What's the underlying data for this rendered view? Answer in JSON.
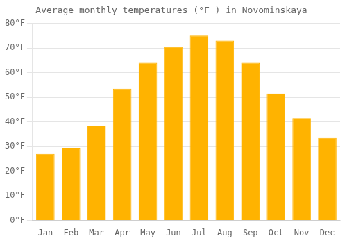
{
  "chart_data": {
    "type": "bar",
    "title": "Average monthly temperatures (°F ) in Novominskaya",
    "categories": [
      "Jan",
      "Feb",
      "Mar",
      "Apr",
      "May",
      "Jun",
      "Jul",
      "Aug",
      "Sep",
      "Oct",
      "Nov",
      "Dec"
    ],
    "values": [
      27,
      29.5,
      38.5,
      53.5,
      64,
      70.5,
      75,
      73,
      64,
      51.5,
      41.5,
      33.5
    ],
    "color": "#FFB300",
    "ylim": [
      0,
      80
    ],
    "yticks": [
      {
        "value": 0,
        "label": "0°F"
      },
      {
        "value": 10,
        "label": "10°F"
      },
      {
        "value": 20,
        "label": "20°F"
      },
      {
        "value": 30,
        "label": "30°F"
      },
      {
        "value": 40,
        "label": "40°F"
      },
      {
        "value": 50,
        "label": "50°F"
      },
      {
        "value": 60,
        "label": "60°F"
      },
      {
        "value": 70,
        "label": "70°F"
      },
      {
        "value": 80,
        "label": "80°F"
      }
    ],
    "grid": true
  }
}
